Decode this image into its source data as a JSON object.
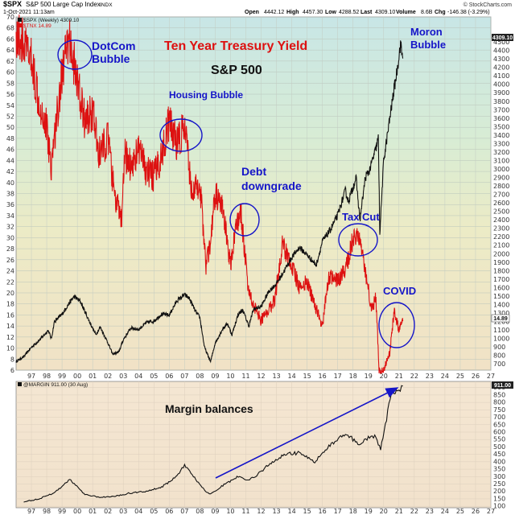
{
  "header": {
    "symbol": "$SPX",
    "name": "S&P 500 Large Cap Index",
    "exchange": "INDX",
    "date": "1-Oct-2021 11:13am",
    "open_label": "Open",
    "open": "4442.12",
    "high_label": "High",
    "high": "4457.30",
    "low_label": "Low",
    "low": "4288.52",
    "last_label": "Last",
    "last": "4309.10",
    "volume_label": "Volume",
    "volume": "8.6B",
    "chg_label": "Chg",
    "chg": "-146.38 (-3.29%)",
    "credit": "© StockCharts.com"
  },
  "top_panel": {
    "legend_spx": "$SPX (Weekly) 4309.10",
    "legend_tnx": "$TNX 14.89",
    "spx_last_badge": "4309.10",
    "tnx_last_badge": "14.89"
  },
  "bottom_panel": {
    "legend_margin": "@MARGIN 911.00 (30 Aug)",
    "margin_last_badge": "911.00"
  },
  "annotations": {
    "dotcom_line1": "DotCom",
    "dotcom_line2": "Bubble",
    "title_treasury": "Ten Year Treasury Yield",
    "title_spx": "S&P 500",
    "housing": "Housing Bubble",
    "debt_line1": "Debt",
    "debt_line2": "downgrade",
    "tax_cut": "Tax Cut",
    "covid": "COVID",
    "moron_line1": "Moron",
    "moron_line2": "Bubble",
    "margin_balances": "Margin balances"
  },
  "colors": {
    "spx_line": "#111111",
    "tnx_line": "#dd1111",
    "margin_line": "#111111",
    "annotation_blue": "#1515c8",
    "annotation_red": "#dd1111",
    "arrow": "#1515c8"
  },
  "chart_data": [
    {
      "type": "line",
      "x_tick_labels": [
        "97",
        "98",
        "99",
        "00",
        "01",
        "02",
        "03",
        "04",
        "05",
        "06",
        "07",
        "08",
        "09",
        "10",
        "11",
        "12",
        "13",
        "14",
        "15",
        "16",
        "17",
        "18",
        "19",
        "20",
        "21",
        "22",
        "23",
        "24",
        "25",
        "26",
        "27"
      ],
      "xlim": [
        1996.5,
        2027.5
      ],
      "left_axis": {
        "ylim": [
          6,
          70
        ],
        "ticks": [
          6,
          8,
          10,
          12,
          14,
          16,
          18,
          20,
          22,
          24,
          26,
          28,
          30,
          32,
          34,
          36,
          38,
          40,
          42,
          44,
          46,
          48,
          50,
          52,
          54,
          56,
          58,
          60,
          62,
          64,
          66,
          68,
          70
        ]
      },
      "right_axis": {
        "ylim": [
          630,
          4800
        ],
        "ticks": [
          700,
          800,
          900,
          1000,
          1100,
          1200,
          1300,
          1400,
          1500,
          1600,
          1700,
          1800,
          1900,
          2000,
          2100,
          2200,
          2300,
          2400,
          2500,
          2600,
          2700,
          2800,
          2900,
          3000,
          3100,
          3200,
          3300,
          3400,
          3500,
          3600,
          3700,
          3800,
          3900,
          4000,
          4100,
          4200,
          4300,
          4400,
          4500
        ]
      },
      "series": [
        {
          "name": "$SPX (Weekly)",
          "axis": "right",
          "x": [
            1996.5,
            1997,
            1997.5,
            1998,
            1998.6,
            1998.8,
            1999,
            1999.5,
            2000,
            2000.3,
            2000.7,
            2001,
            2001.3,
            2001.7,
            2002,
            2002.5,
            2002.8,
            2003.2,
            2003.5,
            2004,
            2004.5,
            2005,
            2005.5,
            2006,
            2006.5,
            2007,
            2007.5,
            2007.8,
            2008.2,
            2008.5,
            2008.8,
            2009.2,
            2009.5,
            2010,
            2010.3,
            2010.6,
            2011,
            2011.3,
            2011.7,
            2012,
            2012.5,
            2013,
            2013.5,
            2014,
            2014.5,
            2015,
            2015.5,
            2016.1,
            2016.5,
            2017,
            2017.5,
            2018,
            2018.2,
            2018.7,
            2018.95,
            2019.3,
            2019.6,
            2020,
            2020.15,
            2020.25,
            2020.5,
            2020.9,
            2021.1,
            2021.4,
            2021.6,
            2021.75
          ],
          "values": [
            730,
            790,
            900,
            980,
            1100,
            1000,
            1200,
            1290,
            1430,
            1500,
            1440,
            1320,
            1200,
            1050,
            1140,
            950,
            820,
            840,
            990,
            1130,
            1110,
            1190,
            1210,
            1290,
            1280,
            1450,
            1520,
            1480,
            1330,
            1250,
            900,
            730,
            950,
            1120,
            1180,
            1050,
            1290,
            1340,
            1150,
            1350,
            1380,
            1560,
            1650,
            1800,
            1960,
            2080,
            1990,
            1870,
            2150,
            2280,
            2460,
            2750,
            2620,
            2900,
            2400,
            2900,
            3000,
            3250,
            3370,
            2250,
            3100,
            3600,
            3850,
            4200,
            4480,
            4309.1
          ]
        },
        {
          "name": "$TNX",
          "axis": "left",
          "x": [
            1996.5,
            1997,
            1997.5,
            1998,
            1998.5,
            1998.8,
            1999,
            1999.5,
            2000,
            2000.5,
            2001,
            2001.5,
            2001.9,
            2002.5,
            2002.9,
            2003.4,
            2003.6,
            2004,
            2004.5,
            2005,
            2005.5,
            2006,
            2006.5,
            2007,
            2007.5,
            2008,
            2008.5,
            2008.9,
            2009.2,
            2009.5,
            2010,
            2010.5,
            2010.9,
            2011.2,
            2011.7,
            2012,
            2012.5,
            2013,
            2013.4,
            2013.9,
            2014.5,
            2015,
            2015.5,
            2016.1,
            2016.5,
            2016.9,
            2017.5,
            2018,
            2018.4,
            2018.8,
            2019.2,
            2019.7,
            2020,
            2020.2,
            2020.5,
            2020.9,
            2021.2,
            2021.5,
            2021.75
          ],
          "values": [
            67,
            65,
            62,
            55,
            50,
            43,
            48,
            60,
            66,
            58,
            51,
            53,
            45,
            48,
            38,
            33,
            45,
            43,
            46,
            42,
            41,
            45,
            51,
            47,
            50,
            38,
            40,
            25,
            29,
            38,
            35,
            25,
            33,
            34,
            20,
            18,
            15,
            17,
            19,
            29,
            25,
            21,
            22,
            17,
            14,
            23,
            22,
            24,
            29,
            31,
            26,
            17,
            19,
            6,
            6,
            9,
            17,
            13,
            14.89
          ]
        },
        {
          "name": "@MARGIN",
          "axis": "margin",
          "ylim": [
            90,
            920
          ],
          "ticks": [
            100,
            150,
            200,
            250,
            300,
            350,
            400,
            450,
            500,
            550,
            600,
            650,
            700,
            750,
            800,
            850,
            900
          ],
          "x": [
            1997,
            1998,
            1999,
            2000,
            2000.3,
            2001,
            2002,
            2003,
            2004,
            2005,
            2006,
            2007,
            2007.5,
            2008,
            2008.8,
            2009.2,
            2010,
            2011,
            2011.5,
            2012,
            2013,
            2014,
            2015,
            2016,
            2017,
            2018,
            2018.9,
            2019.5,
            2020,
            2020.3,
            2021,
            2021.5,
            2021.75
          ],
          "values": [
            130,
            150,
            190,
            280,
            250,
            180,
            160,
            170,
            190,
            200,
            230,
            300,
            380,
            310,
            210,
            180,
            240,
            300,
            280,
            290,
            380,
            450,
            460,
            400,
            510,
            590,
            520,
            560,
            570,
            480,
            860,
            880,
            911
          ]
        }
      ]
    }
  ]
}
